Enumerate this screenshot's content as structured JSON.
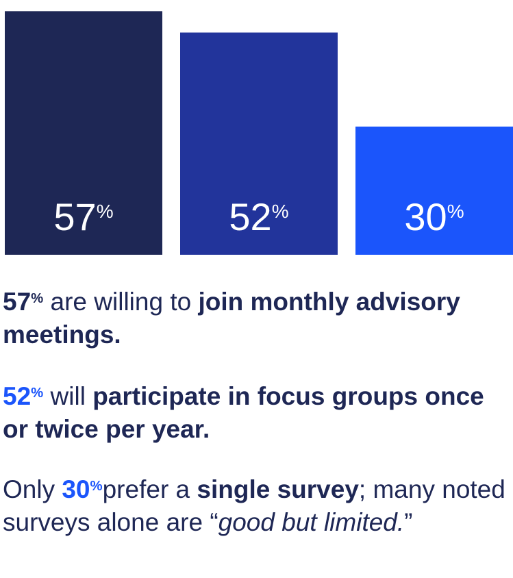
{
  "chart_data": {
    "type": "bar",
    "categories": [
      "",
      "",
      ""
    ],
    "values": [
      57,
      52,
      30
    ],
    "value_labels": [
      "57",
      "52",
      "30"
    ],
    "unit": "%",
    "colors": [
      "#1e2755",
      "#22349b",
      "#1b55fb"
    ],
    "ylim": [
      0,
      60
    ],
    "title": "",
    "xlabel": "",
    "ylabel": "",
    "grid": false
  },
  "stats": [
    {
      "pct_value": "57",
      "pct_unit": "%",
      "parts": [
        " are willing to ",
        "join monthly advisory meetings."
      ],
      "pct_color": "#1e2755"
    },
    {
      "pct_value": "52",
      "pct_unit": "%",
      "parts": [
        " will ",
        "participate in focus groups once or twice per year."
      ],
      "pct_color": "#1b55fb"
    },
    {
      "lead": "Only ",
      "pct_value": "30",
      "pct_unit": "%",
      "parts": [
        "prefer a ",
        "single survey",
        "; many noted surveys alone are “",
        "good but limited.",
        "”"
      ],
      "pct_color": "#1b55fb"
    }
  ]
}
